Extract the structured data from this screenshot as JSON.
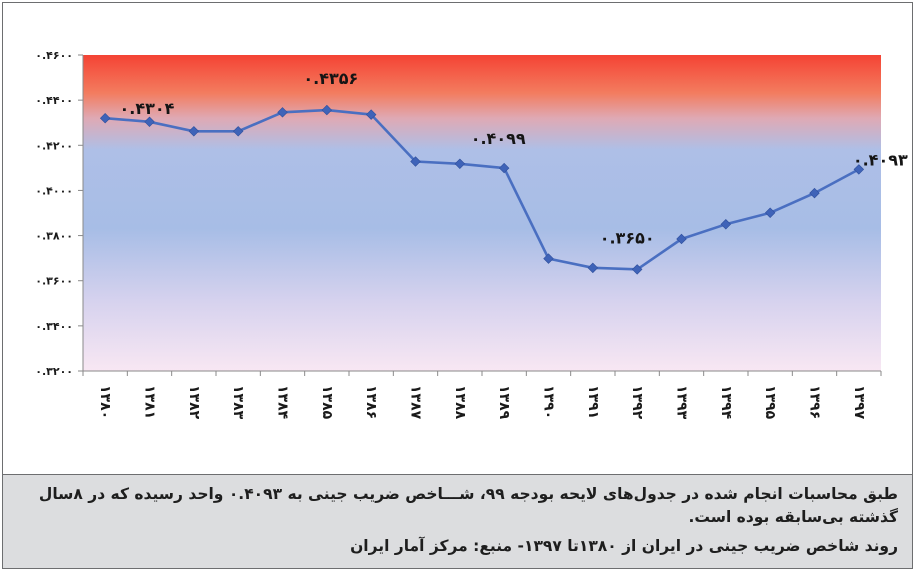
{
  "chart_data": {
    "type": "line",
    "title": "",
    "xlabel": "",
    "ylabel": "",
    "ylim": [
      0.32,
      0.46
    ],
    "y_ticks": [
      0.32,
      0.34,
      0.36,
      0.38,
      0.4,
      0.42,
      0.44,
      0.46
    ],
    "y_tick_labels": [
      "۰.۳۲۰۰",
      "۰.۳۴۰۰",
      "۰.۳۶۰۰",
      "۰.۳۸۰۰",
      "۰.۴۰۰۰",
      "۰.۴۲۰۰",
      "۰.۴۴۰۰",
      "۰.۴۶۰۰"
    ],
    "categories": [
      "۱۳۸۰",
      "۱۳۸۱",
      "۱۳۸۲",
      "۱۳۸۳",
      "۱۳۸۴",
      "۱۳۸۵",
      "۱۳۸۶",
      "۱۳۸۷",
      "۱۳۸۸",
      "۱۳۸۹",
      "۱۳۹۰",
      "۱۳۹۱",
      "۱۳۹۲",
      "۱۳۹۳",
      "۱۳۹۴",
      "۱۳۹۵",
      "۱۳۹۶",
      "۱۳۹۷"
    ],
    "series": [
      {
        "name": "ضریب جینی",
        "color": "#4a6fc1",
        "marker_color": "#3f63b8",
        "values": [
          0.432,
          0.4304,
          0.4262,
          0.4262,
          0.4346,
          0.4356,
          0.4336,
          0.4128,
          0.4118,
          0.4099,
          0.3698,
          0.3657,
          0.365,
          0.3785,
          0.385,
          0.3901,
          0.3988,
          0.4093
        ]
      }
    ],
    "data_labels": [
      {
        "index": 1,
        "text": "۰.۴۳۰۴",
        "pos": "above-right"
      },
      {
        "index": 5,
        "text": "۰.۴۳۵۶",
        "pos": "above-left"
      },
      {
        "index": 9,
        "text": "۰.۴۰۹۹",
        "pos": "above-left"
      },
      {
        "index": 12,
        "text": "۰.۳۶۵۰",
        "pos": "above-left"
      },
      {
        "index": 17,
        "text": "۰.۴۰۹۳",
        "pos": "above-right"
      }
    ],
    "grid": false,
    "legend": "none",
    "background_gradient": [
      "#f5453a",
      "#f28a6e",
      "#bcc6ea",
      "#a9bfe4",
      "#e9d6ec",
      "#f7e6f2"
    ]
  },
  "caption": {
    "text": "طبق محاسبات انجام شده در جدول‌های لایحه بودجه ۹۹، شـــاخص ضریب جینی به ۰.۴۰۹۳ واحد رسیده که در ۸سال گذشته بی‌سابقه بوده است.",
    "source": "روند شاخص ضریب جینی در ایران از ۱۳۸۰تا ۱۳۹۷- منبع: مرکز آمار ایران"
  }
}
